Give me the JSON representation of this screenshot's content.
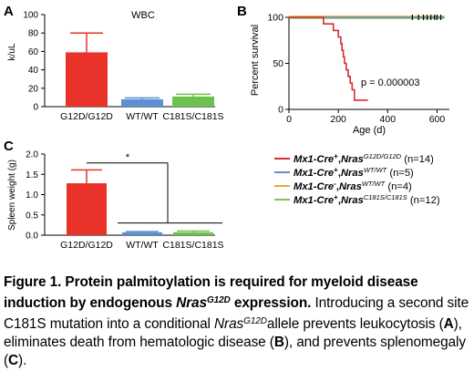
{
  "chart_data": [
    {
      "panel": "A",
      "type": "bar",
      "title": "WBC",
      "ylabel": "k/uL",
      "ylim": [
        0,
        100
      ],
      "yticks": [
        "0",
        "20",
        "40",
        "60",
        "80",
        "100"
      ],
      "categories": [
        "G12D/G12D",
        "WT/WT",
        "C181S/C181S"
      ],
      "values": [
        59,
        8,
        11
      ],
      "errors": [
        21,
        1.5,
        2.5
      ],
      "colors": [
        "#e8322a",
        "#5b8fd6",
        "#6cc24a"
      ]
    },
    {
      "panel": "B",
      "type": "line",
      "xlabel": "Age (d)",
      "ylabel": "Percent survival",
      "xlim": [
        0,
        650
      ],
      "ylim": [
        0,
        100
      ],
      "xticks": [
        "0",
        "200",
        "400",
        "600"
      ],
      "yticks": [
        "0",
        "50",
        "100"
      ],
      "annotation": "p = 0.000003",
      "series": [
        {
          "name_prefix": "Mx1-Cre",
          "cre_sign": "+",
          "name_nras": "Nras",
          "allele": "G12D/G12D",
          "n_label": " (n=14)",
          "color": "#d32f2f",
          "x": [
            0,
            140,
            140,
            180,
            180,
            200,
            200,
            210,
            210,
            215,
            215,
            220,
            220,
            225,
            225,
            232,
            232,
            240,
            240,
            248,
            248,
            256,
            256,
            265,
            265,
            320
          ],
          "y": [
            100,
            100,
            92.9,
            92.9,
            85.7,
            85.7,
            78.6,
            78.6,
            71.4,
            71.4,
            64.3,
            64.3,
            57.1,
            57.1,
            50,
            50,
            42.9,
            42.9,
            35.7,
            35.7,
            28.6,
            28.6,
            21.4,
            21.4,
            10,
            10
          ]
        },
        {
          "name_prefix": "Mx1-Cre",
          "cre_sign": "+",
          "name_nras": "Nras",
          "allele": "WT/WT",
          "n_label": " (n=5)",
          "color": "#5b8fd6",
          "x": [
            0,
            630
          ],
          "y": [
            100,
            100
          ]
        },
        {
          "name_prefix": "Mx1-Cre",
          "cre_sign": "-",
          "name_nras": "Nras",
          "allele": "WT/WT",
          "n_label": " (n=4)",
          "color": "#f5a623",
          "x": [
            0,
            630
          ],
          "y": [
            101,
            101
          ]
        },
        {
          "name_prefix": "Mx1-Cre",
          "cre_sign": "+",
          "name_nras": "Nras",
          "allele": "C181S/C181S",
          "n_label": " (n=12)",
          "color": "#8bc34a",
          "x": [
            0,
            630
          ],
          "y": [
            99,
            99
          ]
        }
      ]
    },
    {
      "panel": "C",
      "type": "bar",
      "ylabel": "Spleen weight (g)",
      "ylim": [
        0,
        2.0
      ],
      "yticks": [
        "0.0",
        "0.5",
        "1.0",
        "1.5",
        "2.0"
      ],
      "categories": [
        "G12D/G12D",
        "WT/WT",
        "C181S/C181S"
      ],
      "values": [
        1.28,
        0.07,
        0.07
      ],
      "errors": [
        0.33,
        0.02,
        0.03
      ],
      "colors": [
        "#e8322a",
        "#5b8fd6",
        "#6cc24a"
      ],
      "significance": "*"
    }
  ],
  "caption": {
    "bold_a": "Figure 1. Protein palmitoylation is required for myeloid disease induction by endogenous ",
    "bold_nras": "Nras",
    "bold_sup": "G12D",
    "bold_b": " expression.",
    "text_1": " Introducing a second site C181S mutation into a conditional ",
    "nras_2": "Nras",
    "sup_2": "G12D",
    "text_2": "allele prevents leukocytosis (",
    "ref_a": "A",
    "text_3": "), eliminates death from hematologic disease (",
    "ref_b": "B",
    "text_4": "), and prevents splenomegaly (",
    "ref_c": "C",
    "text_5": ")."
  }
}
